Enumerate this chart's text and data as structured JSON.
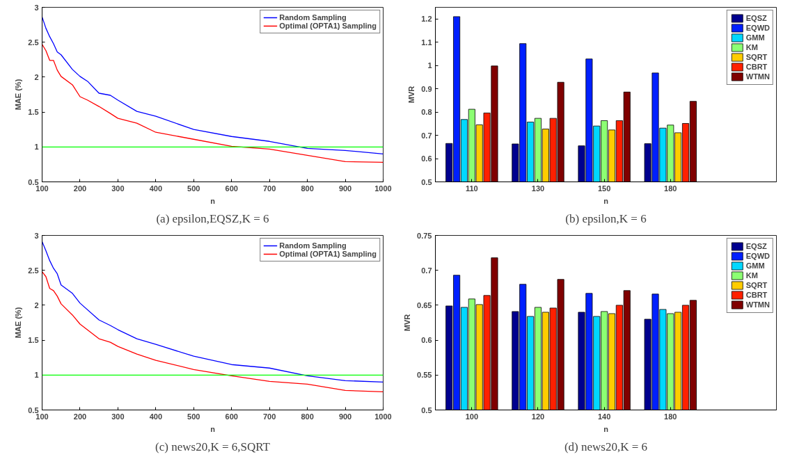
{
  "chart_data": [
    {
      "type": "line",
      "xlabel": "n",
      "ylabel": "MAE (%)",
      "annotations": [
        "(a) epsilon,EQSZ,K = 6"
      ],
      "x": [
        100,
        110,
        120,
        130,
        140,
        150,
        180,
        200,
        220,
        250,
        280,
        300,
        350,
        400,
        500,
        600,
        700,
        800,
        900,
        1000
      ],
      "series": [
        {
          "name": "Random Sampling",
          "color": "#0000ff",
          "values": [
            2.86,
            2.7,
            2.58,
            2.48,
            2.36,
            2.32,
            2.11,
            2.01,
            1.94,
            1.77,
            1.74,
            1.67,
            1.51,
            1.44,
            1.25,
            1.15,
            1.08,
            0.98,
            0.95,
            0.9
          ]
        },
        {
          "name": "Optimal (OPTA1) Sampling",
          "color": "#ff0000",
          "values": [
            2.47,
            2.38,
            2.24,
            2.24,
            2.1,
            2.01,
            1.89,
            1.72,
            1.67,
            1.58,
            1.48,
            1.41,
            1.34,
            1.21,
            1.11,
            1.01,
            0.97,
            0.88,
            0.79,
            0.78
          ]
        }
      ],
      "ref_lines": [
        {
          "axis": "y",
          "value": 1,
          "color": "#00ff00"
        }
      ],
      "xlim": [
        100,
        1000
      ],
      "xticks": [
        100,
        200,
        300,
        400,
        500,
        600,
        700,
        800,
        900,
        1000
      ],
      "ylim": [
        0.5,
        3
      ],
      "yticks": [
        0.5,
        1,
        1.5,
        2,
        2.5,
        3
      ],
      "legend": "top right",
      "grid": false
    },
    {
      "type": "bar",
      "xlabel": "n",
      "ylabel": "MVR",
      "annotations": [
        "(b) epsilon,K = 6"
      ],
      "categories": [
        "110",
        "130",
        "150",
        "180"
      ],
      "series": [
        {
          "name": "EQSZ",
          "color": "#00008f",
          "values": [
            0.665,
            0.663,
            0.655,
            0.664
          ]
        },
        {
          "name": "EQWD",
          "color": "#0020ff",
          "values": [
            1.21,
            1.094,
            1.028,
            0.968
          ]
        },
        {
          "name": "GMM",
          "color": "#00d8ff",
          "values": [
            0.768,
            0.757,
            0.74,
            0.731
          ]
        },
        {
          "name": "KM",
          "color": "#8cff73",
          "values": [
            0.812,
            0.773,
            0.763,
            0.744
          ]
        },
        {
          "name": "SQRT",
          "color": "#ffcc00",
          "values": [
            0.745,
            0.727,
            0.723,
            0.711
          ]
        },
        {
          "name": "CBRT",
          "color": "#ff2000",
          "values": [
            0.796,
            0.773,
            0.763,
            0.751
          ]
        },
        {
          "name": "WTMN",
          "color": "#800000",
          "values": [
            0.998,
            0.928,
            0.886,
            0.846
          ]
        }
      ],
      "ylim": [
        0.5,
        1.25
      ],
      "yticks": [
        0.5,
        0.6,
        0.7,
        0.8,
        0.9,
        1,
        1.1,
        1.2
      ],
      "legend": "top right",
      "grid": false
    },
    {
      "type": "line",
      "xlabel": "n",
      "ylabel": "MAE (%)",
      "annotations": [
        "(c) news20,K = 6,SQRT"
      ],
      "x": [
        100,
        110,
        120,
        130,
        140,
        150,
        180,
        200,
        250,
        280,
        300,
        350,
        400,
        500,
        600,
        700,
        800,
        900,
        1000
      ],
      "series": [
        {
          "name": "Random Sampling",
          "color": "#0000ff",
          "values": [
            2.91,
            2.78,
            2.64,
            2.53,
            2.45,
            2.29,
            2.17,
            2.03,
            1.79,
            1.71,
            1.65,
            1.52,
            1.44,
            1.27,
            1.15,
            1.1,
            0.99,
            0.92,
            0.9
          ]
        },
        {
          "name": "Optimal (OPTA1) Sampling",
          "color": "#ff0000",
          "values": [
            2.48,
            2.41,
            2.24,
            2.21,
            2.13,
            2.02,
            1.86,
            1.73,
            1.52,
            1.47,
            1.41,
            1.3,
            1.21,
            1.08,
            0.99,
            0.91,
            0.87,
            0.78,
            0.76
          ]
        }
      ],
      "ref_lines": [
        {
          "axis": "y",
          "value": 1,
          "color": "#00ff00"
        }
      ],
      "xlim": [
        100,
        1000
      ],
      "xticks": [
        100,
        200,
        300,
        400,
        500,
        600,
        700,
        800,
        900,
        1000
      ],
      "ylim": [
        0.5,
        3
      ],
      "yticks": [
        0.5,
        1,
        1.5,
        2,
        2.5,
        3
      ],
      "legend": "top right",
      "grid": false
    },
    {
      "type": "bar",
      "xlabel": "n",
      "ylabel": "MVR",
      "annotations": [
        "(d) news20,K = 6"
      ],
      "categories": [
        "100",
        "120",
        "140",
        "180"
      ],
      "series": [
        {
          "name": "EQSZ",
          "color": "#00008f",
          "values": [
            0.649,
            0.641,
            0.64,
            0.63
          ]
        },
        {
          "name": "EQWD",
          "color": "#0020ff",
          "values": [
            0.693,
            0.68,
            0.667,
            0.666
          ]
        },
        {
          "name": "GMM",
          "color": "#00d8ff",
          "values": [
            0.647,
            0.634,
            0.634,
            0.644
          ]
        },
        {
          "name": "KM",
          "color": "#8cff73",
          "values": [
            0.659,
            0.647,
            0.641,
            0.638
          ]
        },
        {
          "name": "SQRT",
          "color": "#ffcc00",
          "values": [
            0.651,
            0.64,
            0.638,
            0.64
          ]
        },
        {
          "name": "CBRT",
          "color": "#ff2000",
          "values": [
            0.664,
            0.646,
            0.65,
            0.65
          ]
        },
        {
          "name": "WTMN",
          "color": "#800000",
          "values": [
            0.718,
            0.687,
            0.671,
            0.657
          ]
        }
      ],
      "ylim": [
        0.5,
        0.75
      ],
      "yticks": [
        0.5,
        0.55,
        0.6,
        0.65,
        0.7,
        0.75
      ],
      "legend": "top right",
      "grid": false
    }
  ]
}
